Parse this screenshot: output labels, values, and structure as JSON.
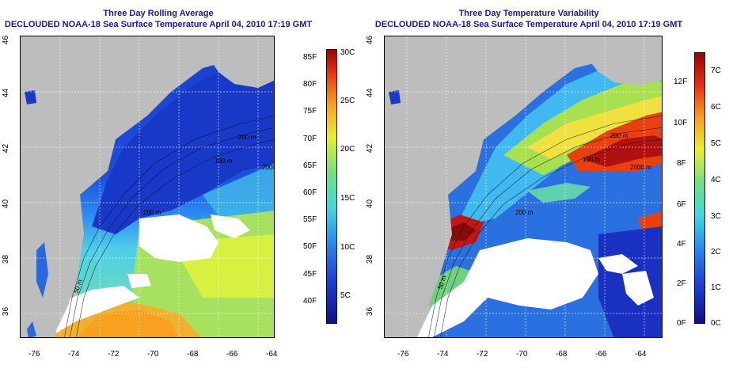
{
  "left_panel": {
    "title_line1": "Three Day Rolling Average",
    "title_line2": "DECLOUDED NOAA-18 Sea Surface Temperature April 04, 2010 17:19 GMT",
    "lat_ticks": [
      "46",
      "44",
      "42",
      "40",
      "38",
      "36"
    ],
    "lon_ticks": [
      "-76",
      "-74",
      "-72",
      "-70",
      "-68",
      "-66",
      "-64"
    ],
    "colorbar_f": [
      "85F",
      "80F",
      "75F",
      "70F",
      "65F",
      "60F",
      "55F",
      "50F",
      "45F",
      "40F"
    ],
    "colorbar_c": [
      "30C",
      "25C",
      "20C",
      "15C",
      "10C",
      "5C"
    ],
    "contour_labels": [
      "200 m",
      "2000 m",
      "100 m",
      "50 m",
      "200 m"
    ]
  },
  "right_panel": {
    "title_line1": "Three Day Temperature Variability",
    "title_line2": "DECLOUDED NOAA-18 Sea Surface Temperature April 04, 2010 17:19 GMT",
    "lat_ticks": [
      "46",
      "44",
      "42",
      "40",
      "38",
      "36"
    ],
    "lon_ticks": [
      "-76",
      "-74",
      "-72",
      "-70",
      "-68",
      "-66",
      "-64"
    ],
    "colorbar_f": [
      "12F",
      "10F",
      "8F",
      "6F",
      "4F",
      "2F",
      "0F"
    ],
    "colorbar_c": [
      "7C",
      "6C",
      "5C",
      "4C",
      "3C",
      "2C",
      "1C",
      "0C"
    ],
    "contour_labels": [
      "200 m",
      "2000 m",
      "100 m",
      "50 m",
      "200 m"
    ]
  },
  "colors": {
    "land": "#bdbdbd",
    "title": "#1a1a9e"
  }
}
